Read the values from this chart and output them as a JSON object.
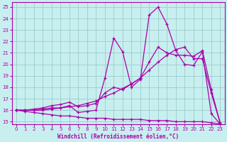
{
  "xlabel": "Windchill (Refroidissement éolien,°C)",
  "xlim": [
    -0.5,
    23.5
  ],
  "ylim": [
    14.8,
    25.4
  ],
  "xticks": [
    0,
    1,
    2,
    3,
    4,
    5,
    6,
    7,
    8,
    9,
    10,
    11,
    12,
    13,
    14,
    15,
    16,
    17,
    18,
    19,
    20,
    21,
    22,
    23
  ],
  "yticks": [
    15,
    16,
    17,
    18,
    19,
    20,
    21,
    22,
    23,
    24,
    25
  ],
  "bg_color": "#c8efef",
  "line_color": "#aa00aa",
  "grid_color": "#99cccc",
  "line1_y": [
    16.0,
    16.0,
    16.0,
    16.1,
    16.2,
    16.2,
    16.4,
    15.8,
    15.9,
    16.0,
    18.8,
    22.3,
    21.1,
    18.0,
    18.7,
    24.3,
    25.0,
    23.5,
    21.2,
    20.0,
    19.9,
    21.1,
    15.7,
    14.8
  ],
  "line2_y": [
    16.0,
    16.0,
    16.1,
    16.2,
    16.4,
    16.5,
    16.7,
    16.3,
    16.4,
    16.6,
    17.5,
    18.0,
    17.8,
    18.3,
    18.8,
    20.2,
    21.5,
    21.0,
    20.8,
    20.8,
    20.7,
    21.2,
    17.8,
    14.9
  ],
  "line3_y": [
    16.0,
    16.0,
    16.0,
    16.0,
    16.1,
    16.2,
    16.3,
    16.4,
    16.6,
    16.8,
    17.2,
    17.5,
    17.9,
    18.3,
    18.8,
    19.5,
    20.2,
    20.8,
    21.3,
    21.5,
    20.5,
    20.5,
    17.5,
    14.9
  ],
  "line4_y": [
    16.0,
    15.9,
    15.8,
    15.7,
    15.6,
    15.5,
    15.5,
    15.4,
    15.3,
    15.3,
    15.3,
    15.2,
    15.2,
    15.2,
    15.2,
    15.1,
    15.1,
    15.1,
    15.0,
    15.0,
    15.0,
    15.0,
    14.9,
    14.8
  ]
}
